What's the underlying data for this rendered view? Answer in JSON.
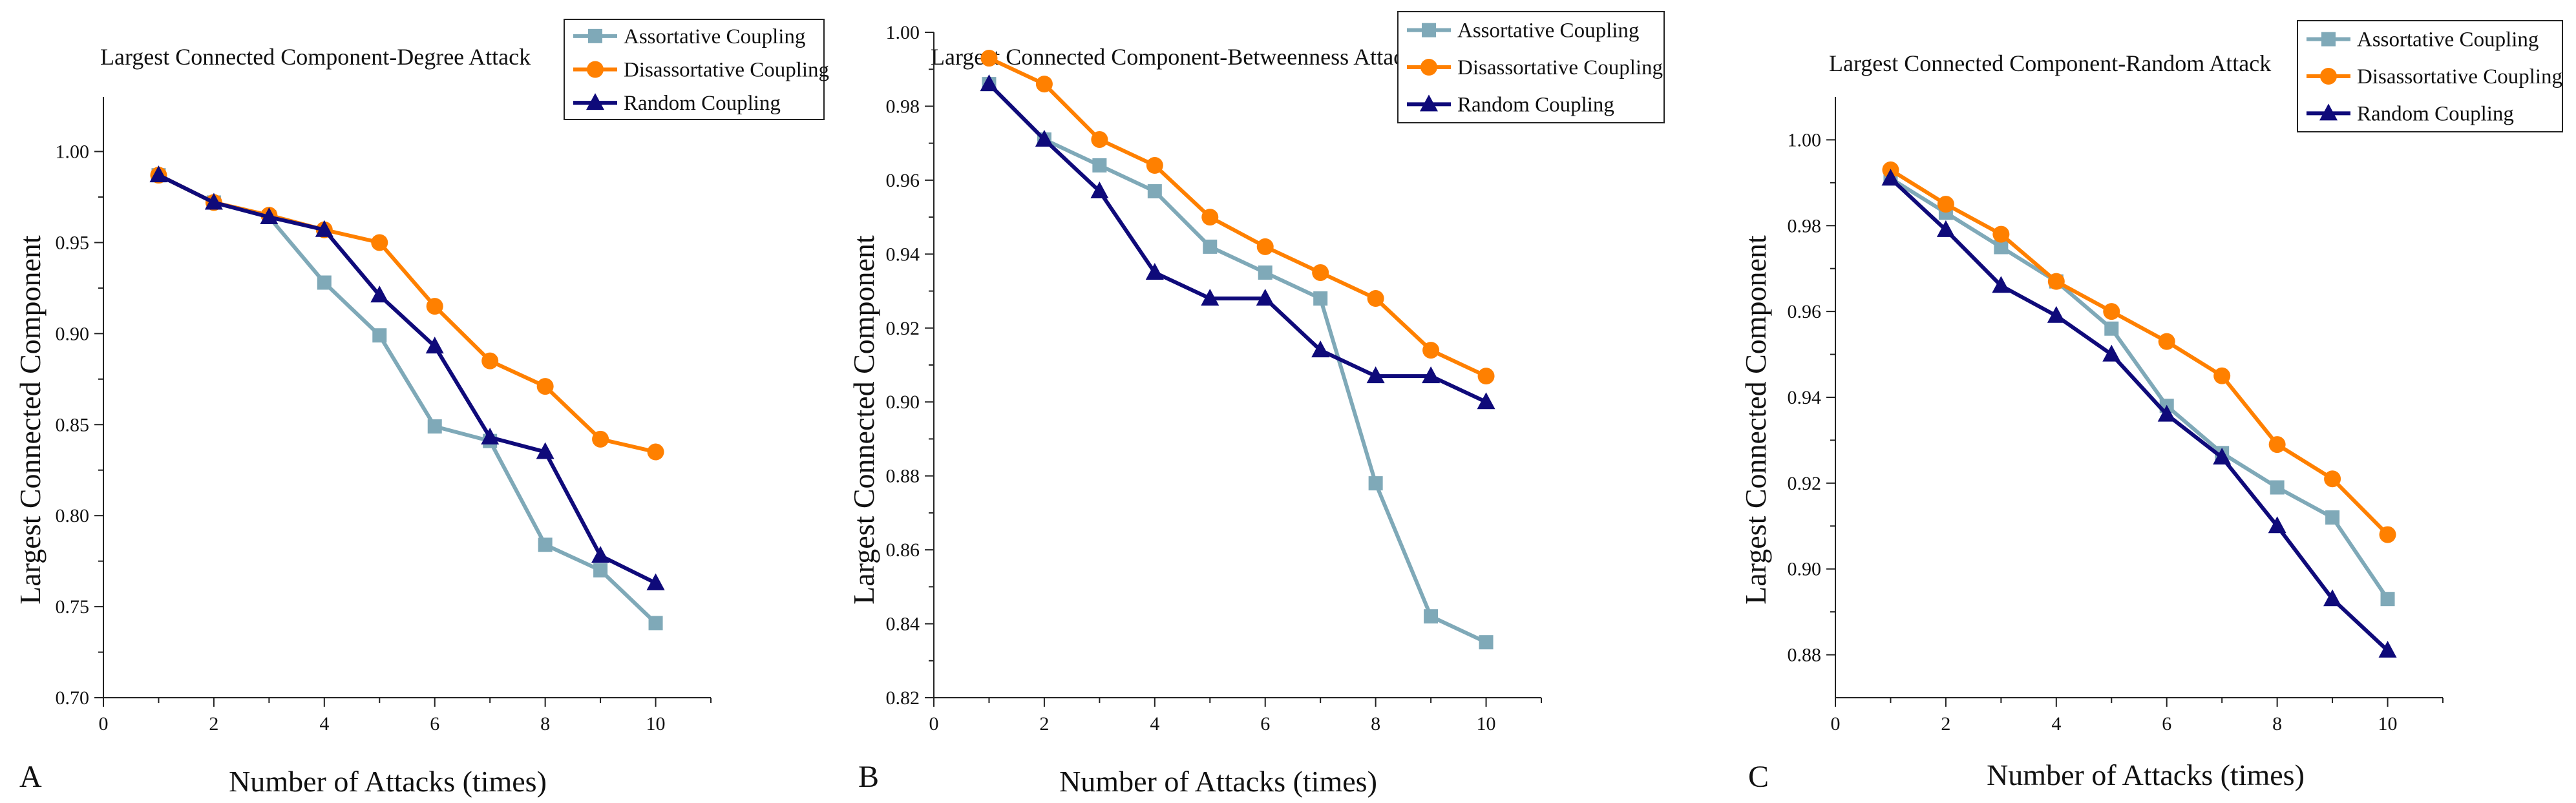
{
  "colors": {
    "assortative": "#7FA9B8",
    "disassortative": "#FF8000",
    "random": "#0F0A7A",
    "axis": "#222222"
  },
  "chart_data": [
    {
      "type": "line",
      "panel_label": "A",
      "title": "Largest Connected Component-Degree Attack",
      "xlabel": "Number of Attacks (times)",
      "ylabel": "Largest Connected Component",
      "xlim": [
        0,
        11
      ],
      "ylim": [
        0.7,
        1.03
      ],
      "x_ticks": [
        0,
        2,
        4,
        6,
        8,
        10
      ],
      "y_ticks": [
        0.7,
        0.75,
        0.8,
        0.85,
        0.9,
        0.95,
        1.0
      ],
      "y_tick_labels": [
        "0.70",
        "0.75",
        "0.80",
        "0.85",
        "0.90",
        "0.95",
        "1.00"
      ],
      "legend_position": "top-right",
      "x": [
        1,
        2,
        3,
        4,
        5,
        6,
        7,
        8,
        9,
        10
      ],
      "series": [
        {
          "name": "Assortative Coupling",
          "key": "assortative",
          "marker": "square",
          "values": [
            0.987,
            0.972,
            0.964,
            0.928,
            0.899,
            0.849,
            0.841,
            0.784,
            0.77,
            0.741
          ]
        },
        {
          "name": "Disassortative Coupling",
          "key": "disassortative",
          "marker": "circle",
          "values": [
            0.987,
            0.972,
            0.965,
            0.957,
            0.95,
            0.915,
            0.885,
            0.871,
            0.842,
            0.835
          ]
        },
        {
          "name": "Random Coupling",
          "key": "random",
          "marker": "triangle",
          "values": [
            0.987,
            0.972,
            0.964,
            0.957,
            0.921,
            0.893,
            0.843,
            0.835,
            0.778,
            0.763
          ]
        }
      ]
    },
    {
      "type": "line",
      "panel_label": "B",
      "title": "Largest Connected Component-Betweenness Attack",
      "xlabel": "Number of Attacks (times)",
      "ylabel": "Largest Connected Component",
      "xlim": [
        0,
        11
      ],
      "ylim": [
        0.82,
        1.0
      ],
      "x_ticks": [
        0,
        2,
        4,
        6,
        8,
        10
      ],
      "y_ticks": [
        0.82,
        0.84,
        0.86,
        0.88,
        0.9,
        0.92,
        0.94,
        0.96,
        0.98,
        1.0
      ],
      "y_tick_labels": [
        "0.82",
        "0.84",
        "0.86",
        "0.88",
        "0.90",
        "0.92",
        "0.94",
        "0.96",
        "0.98",
        "1.00"
      ],
      "legend_position": "top-right",
      "x": [
        1,
        2,
        3,
        4,
        5,
        6,
        7,
        8,
        9,
        10
      ],
      "series": [
        {
          "name": "Assortative Coupling",
          "key": "assortative",
          "marker": "square",
          "values": [
            0.986,
            0.971,
            0.964,
            0.957,
            0.942,
            0.935,
            0.928,
            0.878,
            0.842,
            0.835
          ]
        },
        {
          "name": "Disassortative Coupling",
          "key": "disassortative",
          "marker": "circle",
          "values": [
            0.993,
            0.986,
            0.971,
            0.964,
            0.95,
            0.942,
            0.935,
            0.928,
            0.914,
            0.907
          ]
        },
        {
          "name": "Random Coupling",
          "key": "random",
          "marker": "triangle",
          "values": [
            0.986,
            0.971,
            0.957,
            0.935,
            0.928,
            0.928,
            0.914,
            0.907,
            0.907,
            0.9
          ]
        }
      ]
    },
    {
      "type": "line",
      "panel_label": "C",
      "title": "Largest Connected Component-Random Attack",
      "xlabel": "Number of Attacks (times)",
      "ylabel": "Largest Connected Component",
      "xlim": [
        0,
        11
      ],
      "ylim": [
        0.87,
        1.01
      ],
      "x_ticks": [
        0,
        2,
        4,
        6,
        8,
        10
      ],
      "y_ticks": [
        0.88,
        0.9,
        0.92,
        0.94,
        0.96,
        0.98,
        1.0
      ],
      "y_tick_labels": [
        "0.88",
        "0.90",
        "0.92",
        "0.94",
        "0.96",
        "0.98",
        "1.00"
      ],
      "legend_position": "top-right",
      "x": [
        1,
        2,
        3,
        4,
        5,
        6,
        7,
        8,
        9,
        10
      ],
      "series": [
        {
          "name": "Assortative Coupling",
          "key": "assortative",
          "marker": "square",
          "values": [
            0.991,
            0.983,
            0.975,
            0.967,
            0.956,
            0.938,
            0.927,
            0.919,
            0.912,
            0.893
          ]
        },
        {
          "name": "Disassortative Coupling",
          "key": "disassortative",
          "marker": "circle",
          "values": [
            0.993,
            0.985,
            0.978,
            0.967,
            0.96,
            0.953,
            0.945,
            0.929,
            0.921,
            0.908
          ]
        },
        {
          "name": "Random Coupling",
          "key": "random",
          "marker": "triangle",
          "values": [
            0.991,
            0.979,
            0.966,
            0.959,
            0.95,
            0.936,
            0.926,
            0.91,
            0.893,
            0.881
          ]
        }
      ]
    }
  ]
}
